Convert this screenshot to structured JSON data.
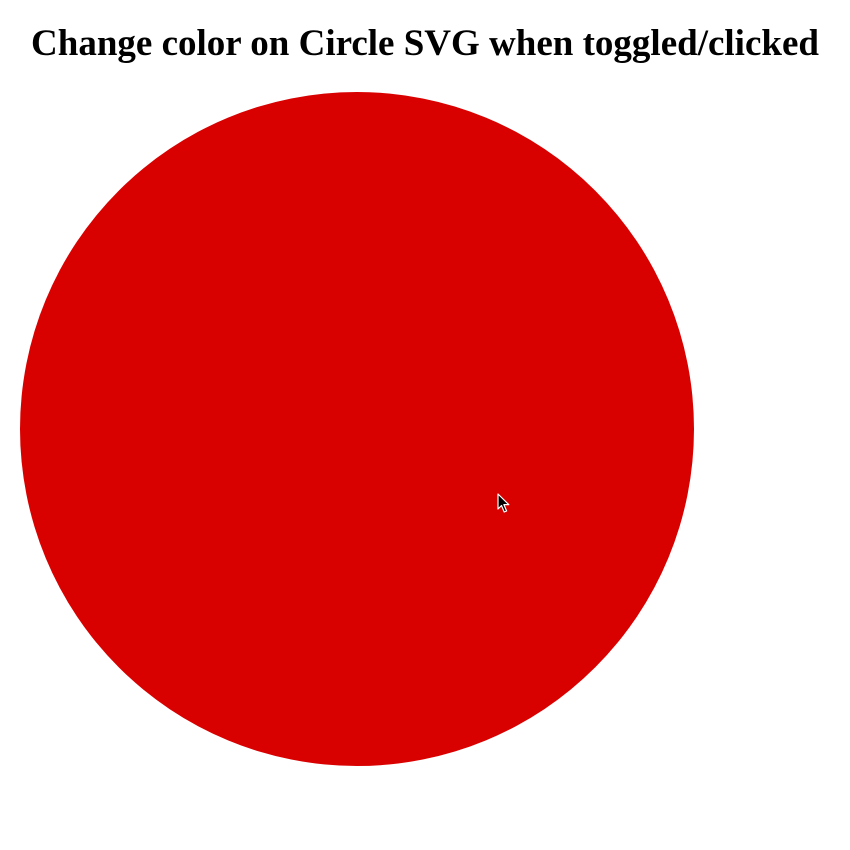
{
  "page": {
    "title": "Change color on Circle SVG when toggled/clicked"
  },
  "circle": {
    "fill_color": "#d90000",
    "state": "toggled",
    "shape": "circle"
  },
  "cursor": {
    "icon": "arrow-pointer-icon"
  }
}
